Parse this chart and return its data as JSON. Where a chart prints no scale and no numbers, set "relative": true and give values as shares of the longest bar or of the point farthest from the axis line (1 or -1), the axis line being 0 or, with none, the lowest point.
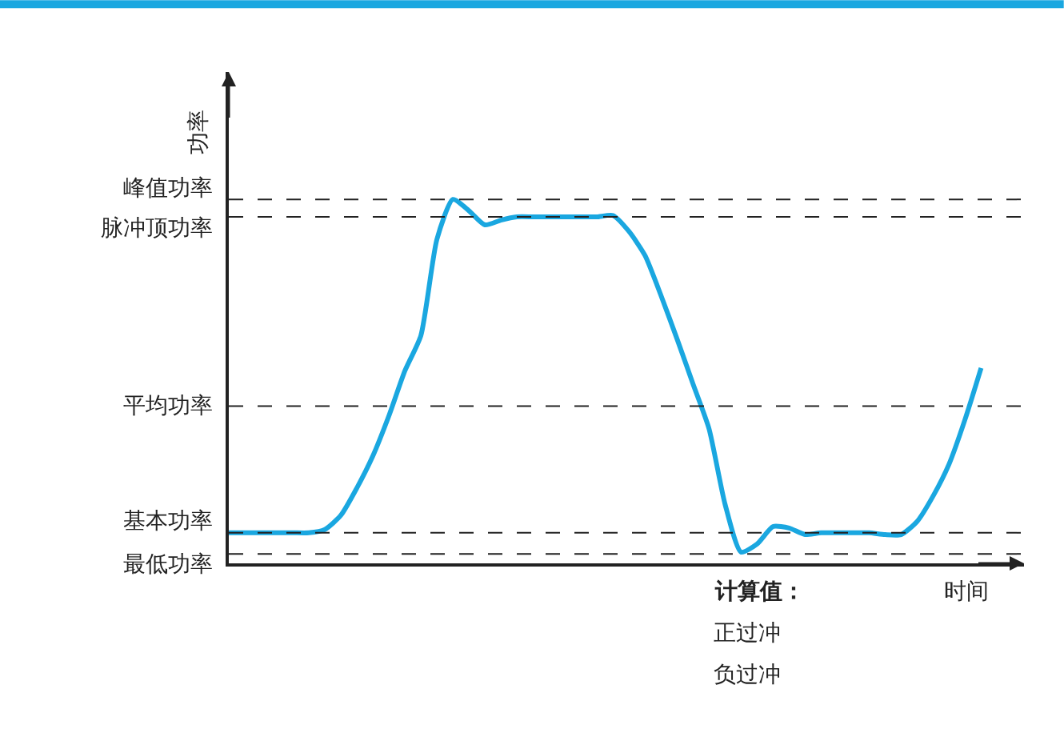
{
  "chart_data": {
    "type": "line",
    "relative": true,
    "ylabel": "功率",
    "xlabel": "时间",
    "categories": [
      null,
      null,
      null,
      null,
      null,
      null,
      null,
      null,
      null,
      null,
      null,
      null,
      null,
      null,
      null,
      null,
      null,
      null,
      null,
      null,
      null,
      null,
      null,
      null,
      null,
      null,
      null,
      null,
      null,
      null,
      null,
      null,
      null,
      null,
      null,
      null,
      null,
      null,
      null,
      null,
      null,
      null,
      null,
      null,
      null,
      null,
      null,
      null
    ],
    "series": [
      {
        "color": "#1aa7e0",
        "values": [
          0.084,
          0.084,
          0.084,
          0.084,
          0.084,
          0.084,
          0.093,
          0.132,
          0.207,
          0.295,
          0.405,
          0.529,
          0.626,
          0.89,
          1.0,
          0.969,
          0.93,
          0.943,
          0.952,
          0.952,
          0.952,
          0.952,
          0.952,
          0.952,
          0.956,
          0.912,
          0.846,
          0.736,
          0.617,
          0.493,
          0.37,
          0.163,
          0.031,
          0.053,
          0.101,
          0.097,
          0.079,
          0.084,
          0.084,
          0.084,
          0.084,
          0.079,
          0.079,
          0.115,
          0.185,
          0.273,
          0.396,
          0.537
        ]
      }
    ],
    "ref_lines": [
      {
        "axis": "y",
        "value": 1.0,
        "label": "峰值功率",
        "line_style": "dashed",
        "color": "#222222"
      },
      {
        "axis": "y",
        "value": 0.952,
        "label": "脉冲顶功率",
        "line_style": "dashed",
        "color": "#222222"
      },
      {
        "axis": "y",
        "value": 0.432,
        "label": "平均功率",
        "line_style": "dashed",
        "color": "#222222"
      },
      {
        "axis": "y",
        "value": 0.084,
        "label": "基本功率",
        "line_style": "dashed",
        "color": "#222222"
      },
      {
        "axis": "y",
        "value": 0.026,
        "label": "最低功率",
        "line_style": "dashed",
        "color": "#222222"
      }
    ],
    "annotations": [
      "计算值：",
      "正过冲",
      "负过冲"
    ],
    "legend": false,
    "marker": "none",
    "line_style": "solid"
  }
}
